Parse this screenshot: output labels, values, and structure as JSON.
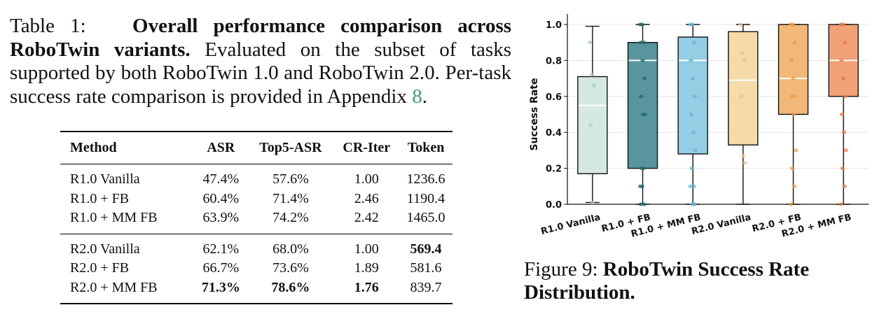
{
  "table_caption": {
    "label": "Table 1:",
    "title": "Overall performance comparison across RoboTwin variants.",
    "body": "Evaluated on the subset of tasks supported by both RoboTwin 1.0 and RoboTwin 2.0. Per-task success rate comparison is provided in Appendix",
    "ref": "8",
    "end": "."
  },
  "table": {
    "headers": [
      "Method",
      "ASR",
      "Top5-ASR",
      "CR-Iter",
      "Token"
    ],
    "rows": [
      {
        "cells": [
          "R1.0 Vanilla",
          "47.4%",
          "57.6%",
          "1.00",
          "1236.6"
        ],
        "bold": []
      },
      {
        "cells": [
          "R1.0 + FB",
          "60.4%",
          "71.4%",
          "2.46",
          "1190.4"
        ],
        "bold": []
      },
      {
        "cells": [
          "R1.0 + MM FB",
          "63.9%",
          "74.2%",
          "2.42",
          "1465.0"
        ],
        "bold": []
      },
      {
        "cells": [
          "R2.0 Vanilla",
          "62.1%",
          "68.0%",
          "1.00",
          "569.4"
        ],
        "bold": [
          4
        ]
      },
      {
        "cells": [
          "R2.0 + FB",
          "66.7%",
          "73.6%",
          "1.89",
          "581.6"
        ],
        "bold": []
      },
      {
        "cells": [
          "R2.0 + MM FB",
          "71.3%",
          "78.6%",
          "1.76",
          "839.7"
        ],
        "bold": [
          1,
          2,
          3
        ]
      }
    ]
  },
  "figure_caption": {
    "label": "Figure 9:",
    "title": "RoboTwin Success Rate Distribution."
  },
  "chart_data": {
    "type": "box",
    "ylabel": "Success Rate",
    "ylim": [
      0,
      1.0
    ],
    "yticks": [
      "0.0",
      "0.2",
      "0.4",
      "0.6",
      "0.8",
      "1.0"
    ],
    "grid": true,
    "categories": [
      "R1.0 Vanilla",
      "R1.0 + FB",
      "R1.0 + MM FB",
      "R2.0 Vanilla",
      "R2.0 + FB",
      "R2.0 + MM FB"
    ],
    "colors": {
      "fill": [
        "#d3e7df",
        "#4f8f98",
        "#8fcbe3",
        "#f3d9a4",
        "#f1b470",
        "#ef9c70"
      ],
      "points": [
        "#a9cdbf",
        "#236b73",
        "#5fb4d6",
        "#e8c489",
        "#ef9a4a",
        "#ec7b45"
      ],
      "edge": "#111111",
      "median": "#ffffff"
    },
    "boxes": [
      {
        "min": 0.01,
        "q1": 0.17,
        "median": 0.55,
        "q3": 0.71,
        "max": 0.99,
        "points": [
          0.9,
          0.72,
          0.66,
          0.44,
          0.01
        ]
      },
      {
        "min": 0.0,
        "q1": 0.2,
        "median": 0.8,
        "q3": 0.9,
        "max": 1.0,
        "points": [
          1.0,
          1.0,
          0.9,
          0.9,
          0.8,
          0.7,
          0.6,
          0.5,
          0.5,
          0.2,
          0.2,
          0.1,
          0.1,
          0.0,
          0.0
        ]
      },
      {
        "min": 0.0,
        "q1": 0.28,
        "median": 0.8,
        "q3": 0.93,
        "max": 1.0,
        "points": [
          1.0,
          1.0,
          0.9,
          0.8,
          0.7,
          0.6,
          0.5,
          0.4,
          0.3,
          0.2,
          0.1,
          0.1,
          0.0,
          0.0
        ]
      },
      {
        "min": 0.0,
        "q1": 0.33,
        "median": 0.69,
        "q3": 0.96,
        "max": 1.0,
        "points": [
          1.0,
          0.84,
          0.8,
          0.6,
          0.27,
          0.23
        ]
      },
      {
        "min": 0.0,
        "q1": 0.5,
        "median": 0.7,
        "q3": 1.0,
        "max": 1.0,
        "points": [
          1.0,
          1.0,
          0.9,
          0.8,
          0.7,
          0.6,
          0.6,
          0.5,
          0.3,
          0.2,
          0.1,
          0.0
        ]
      },
      {
        "min": 0.0,
        "q1": 0.6,
        "median": 0.8,
        "q3": 1.0,
        "max": 1.0,
        "points": [
          1.0,
          1.0,
          0.9,
          0.8,
          0.7,
          0.6,
          0.5,
          0.4,
          0.3,
          0.2,
          0.1,
          0.0
        ]
      }
    ]
  }
}
